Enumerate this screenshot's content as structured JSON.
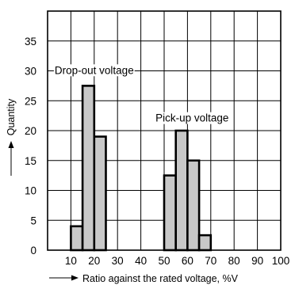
{
  "chart_data": {
    "type": "bar",
    "xlabel": "Ratio against the rated voltage, %V",
    "ylabel": "Quantity",
    "xlim": [
      0,
      100
    ],
    "ylim": [
      0,
      40
    ],
    "x_ticks": [
      10,
      20,
      30,
      40,
      50,
      60,
      70,
      80,
      90,
      100
    ],
    "y_ticks": [
      0,
      5,
      10,
      15,
      20,
      25,
      30,
      35
    ],
    "grid": true,
    "series": [
      {
        "name": "Drop-out voltage",
        "bins": [
          {
            "from": 10,
            "to": 15,
            "value": 4
          },
          {
            "from": 15,
            "to": 20,
            "value": 27.5
          },
          {
            "from": 20,
            "to": 25,
            "value": 19
          }
        ]
      },
      {
        "name": "Pick-up voltage",
        "bins": [
          {
            "from": 50,
            "to": 55,
            "value": 12.5
          },
          {
            "from": 55,
            "to": 60,
            "value": 20
          },
          {
            "from": 60,
            "to": 65,
            "value": 15
          },
          {
            "from": 65,
            "to": 70,
            "value": 2.5
          }
        ]
      }
    ],
    "annotations": [
      {
        "text": "Drop-out voltage",
        "x": 20,
        "y": 29.5
      },
      {
        "text": "Pick-up voltage",
        "x": 62,
        "y": 21.5
      }
    ],
    "colors": {
      "bar_fill": "#c8c8c8",
      "bar_edge": "#000000",
      "grid": "#000000"
    }
  }
}
